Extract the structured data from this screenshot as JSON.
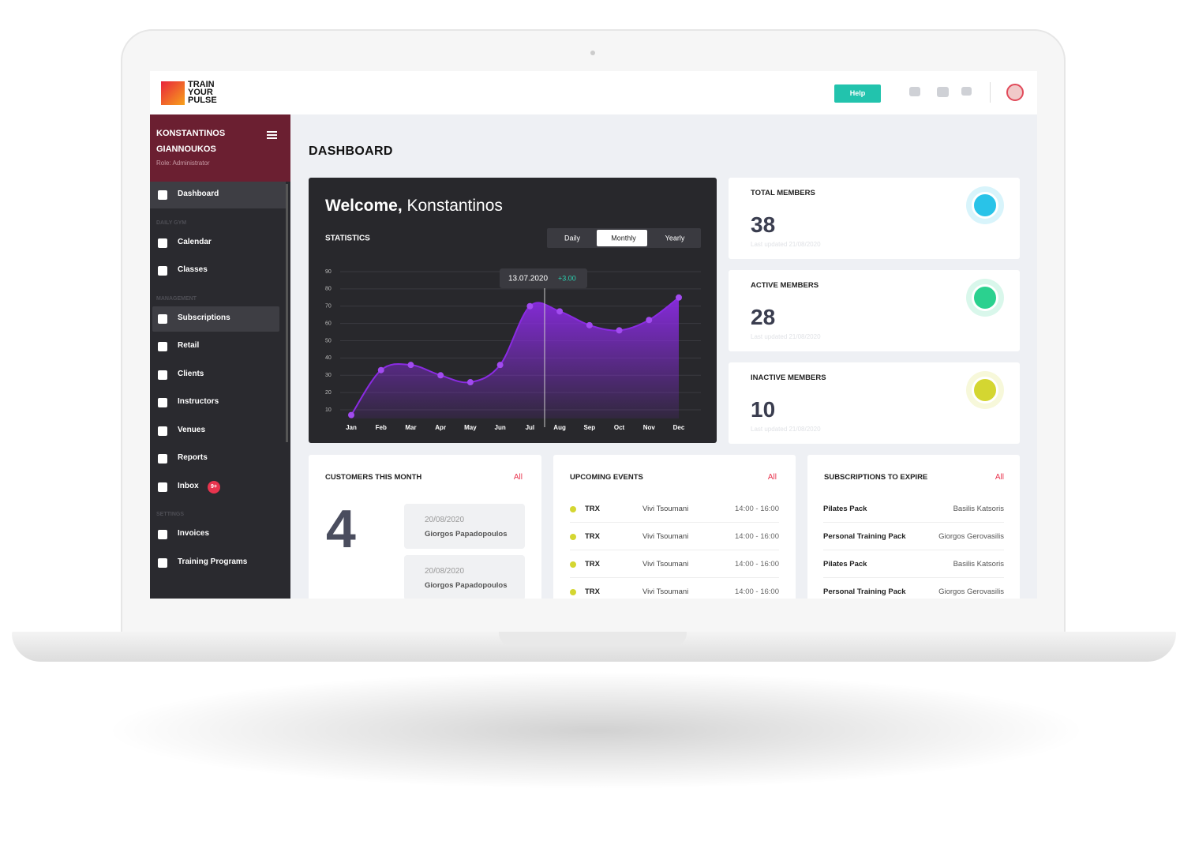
{
  "header": {
    "logo": [
      "TRAIN",
      "YOUR",
      "PULSE"
    ],
    "help": "Help"
  },
  "sidebar": {
    "name": [
      "KONSTANTINOS",
      "GIANNOUKOS"
    ],
    "role": "Role: Administrator",
    "nav": [
      {
        "label": "Dashboard",
        "active": true
      },
      {
        "section": "DAILY GYM"
      },
      {
        "label": "Calendar"
      },
      {
        "label": "Classes"
      },
      {
        "section": "MANAGEMENT"
      },
      {
        "label": "Subscriptions",
        "highlighted": true
      },
      {
        "label": "Retail"
      },
      {
        "label": "Clients"
      },
      {
        "label": "Instructors"
      },
      {
        "label": "Venues"
      },
      {
        "label": "Reports"
      },
      {
        "label": "Inbox",
        "badge": "9+"
      },
      {
        "section": "SETTINGS"
      },
      {
        "label": "Invoices"
      },
      {
        "label": "Training Programs"
      }
    ]
  },
  "page_title": "DASHBOARD",
  "welcome": {
    "greeting": "Welcome,",
    "name": "Konstantinos",
    "statistics": "STATISTICS",
    "tabs": [
      "Daily",
      "Monthly",
      "Yearly"
    ],
    "active_tab": 1,
    "tooltip": {
      "date": "13.07.2020",
      "change": "+3.00"
    }
  },
  "chart_data": {
    "type": "area",
    "categories": [
      "Jan",
      "Feb",
      "Mar",
      "Apr",
      "May",
      "Jun",
      "Jul",
      "Aug",
      "Sep",
      "Oct",
      "Nov",
      "Dec"
    ],
    "values": [
      7,
      33,
      36,
      30,
      26,
      36,
      70,
      67,
      59,
      56,
      62,
      75
    ],
    "color": "#8a2be2",
    "ylim": [
      5,
      92
    ],
    "yticks": [
      10,
      20,
      30,
      40,
      50,
      60,
      70,
      80,
      90
    ],
    "grid": true
  },
  "stats": [
    {
      "label": "TOTAL MEMBERS",
      "value": 38,
      "updated": "Last updated 21/08/2020",
      "color": "#29c3e8"
    },
    {
      "label": "ACTIVE MEMBERS",
      "value": 28,
      "updated": "Last updated 21/08/2020",
      "color": "#2bd18f"
    },
    {
      "label": "INACTIVE MEMBERS",
      "value": 10,
      "updated": "Last updated 21/08/2020",
      "color": "#d4d631"
    }
  ],
  "customers": {
    "title": "CUSTOMERS THIS MONTH",
    "link": "All",
    "count": 4,
    "entries": [
      {
        "date": "20/08/2020",
        "name": "Giorgos Papadopoulos"
      },
      {
        "date": "20/08/2020",
        "name": "Giorgos Papadopoulos"
      }
    ]
  },
  "events": {
    "title": "UPCOMING EVENTS",
    "link": "All",
    "rows": [
      [
        "TRX",
        "Vivi Tsoumani",
        "14:00 - 16:00"
      ],
      [
        "TRX",
        "Vivi Tsoumani",
        "14:00 - 16:00"
      ],
      [
        "TRX",
        "Vivi Tsoumani",
        "14:00 - 16:00"
      ],
      [
        "TRX",
        "Vivi Tsoumani",
        "14:00 - 16:00"
      ]
    ]
  },
  "subscriptions": {
    "title": "SUBSCRIPTIONS TO EXPIRE",
    "link": "All",
    "rows": [
      [
        "Pilates Pack",
        "Basilis Katsoris"
      ],
      [
        "Personal Training Pack",
        "Giorgos Gerovasilis"
      ],
      [
        "Pilates Pack",
        "Basilis Katsoris"
      ],
      [
        "Personal Training Pack",
        "Giorgos Gerovasilis"
      ]
    ]
  }
}
